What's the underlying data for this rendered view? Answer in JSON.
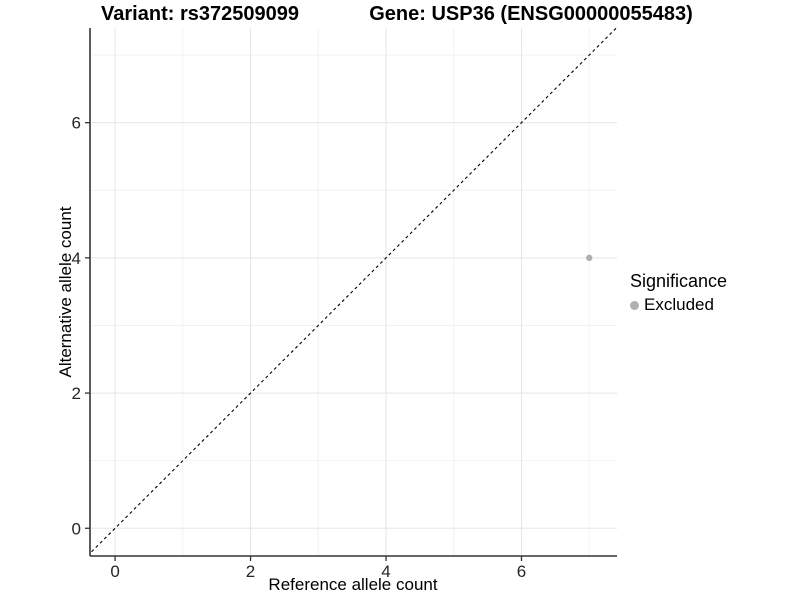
{
  "figure": {
    "title_left": "Variant: rs372509099",
    "title_right": "Gene: USP36 (ENSG00000055483)"
  },
  "chart_data": {
    "type": "scatter",
    "title": "Variant: rs372509099   Gene: USP36 (ENSG00000055483)",
    "xlabel": "Reference allele count",
    "ylabel": "Alternative allele count",
    "xlim": [
      -0.37,
      7.41
    ],
    "ylim": [
      -0.41,
      7.4
    ],
    "x_ticks": [
      0,
      2,
      4,
      6
    ],
    "y_ticks": [
      0,
      2,
      4,
      6
    ],
    "x_minor_ticks": [
      1,
      3,
      5,
      7
    ],
    "y_minor_ticks": [
      1,
      3,
      5,
      7
    ],
    "grid": "on",
    "legend_position": "right",
    "reference_line": {
      "kind": "identity y=x",
      "style": "dashed",
      "color": "#000000"
    },
    "series": [
      {
        "name": "Excluded",
        "color": "#b0b0b0",
        "points": [
          {
            "x": 7,
            "y": 4
          }
        ]
      }
    ],
    "legend": {
      "title": "Significance",
      "items": [
        {
          "label": "Excluded",
          "color": "#b0b0b0",
          "marker": "circle"
        }
      ]
    }
  },
  "style": {
    "grid_major_color": "#e5e5e5",
    "grid_minor_color": "#f2f2f2",
    "axis_color": "#333333",
    "tick_label_color": "#262626",
    "point_color": "#b0b0b0"
  }
}
